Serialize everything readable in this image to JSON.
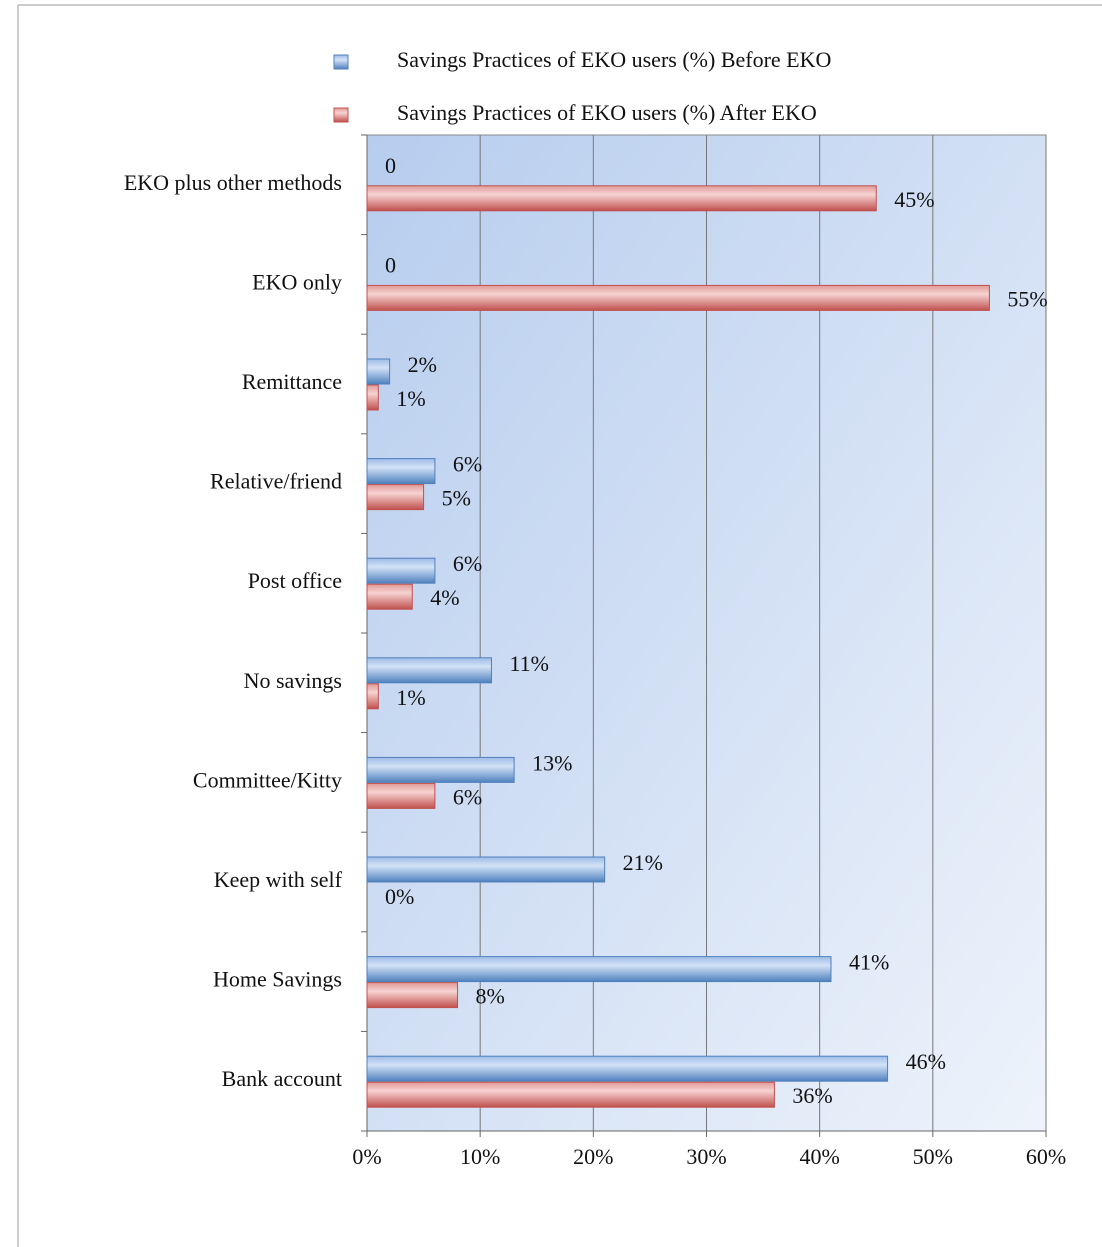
{
  "chart_data": {
    "type": "hbar",
    "categories": [
      "EKO plus other methods",
      "EKO only",
      "Remittance",
      "Relative/friend",
      "Post office",
      "No savings",
      "Committee/Kitty",
      "Keep with self",
      "Home Savings",
      "Bank account"
    ],
    "series": [
      {
        "name": "Savings Practices of EKO users (%) Before EKO",
        "color": "#4f81bd",
        "values": [
          0,
          0,
          2,
          6,
          6,
          11,
          13,
          21,
          41,
          46
        ],
        "value_labels": [
          "0",
          "0",
          "2%",
          "6%",
          "6%",
          "11%",
          "13%",
          "21%",
          "41%",
          "46%"
        ]
      },
      {
        "name": "Savings Practices of EKO users (%) After EKO",
        "color": "#c0504d",
        "values": [
          45,
          55,
          1,
          5,
          4,
          1,
          6,
          0,
          8,
          36
        ],
        "value_labels": [
          "45%",
          "55%",
          "1%",
          "5%",
          "4%",
          "1%",
          "6%",
          "0%",
          "8%",
          "36%"
        ]
      }
    ],
    "xlim": [
      0,
      60
    ],
    "xticks": [
      {
        "value": 0,
        "label": "0%"
      },
      {
        "value": 10,
        "label": "10%"
      },
      {
        "value": 20,
        "label": "20%"
      },
      {
        "value": 30,
        "label": "30%"
      },
      {
        "value": 40,
        "label": "40%"
      },
      {
        "value": 50,
        "label": "50%"
      },
      {
        "value": 60,
        "label": "60%"
      }
    ],
    "grid": true,
    "legend": "top"
  }
}
